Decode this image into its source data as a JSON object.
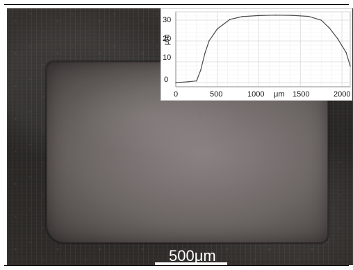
{
  "scale_bar": {
    "label": "500μm"
  },
  "inset_plot": {
    "y_unit": "μm",
    "x_unit": "μm",
    "y_ticks": [
      "30",
      "20",
      "10",
      "0"
    ],
    "x_ticks": [
      "0",
      "500",
      "1000",
      "1500",
      "2000"
    ],
    "grid": true
  },
  "chart_data": {
    "type": "line",
    "xlabel": "μm",
    "ylabel": "μm",
    "xlim": [
      0,
      2100
    ],
    "ylim": [
      -2,
      34
    ],
    "series": [
      {
        "values": [
          [
            0,
            0.0
          ],
          [
            150,
            0.4
          ],
          [
            250,
            0.8
          ],
          [
            300,
            6.0
          ],
          [
            350,
            14.0
          ],
          [
            400,
            20.0
          ],
          [
            500,
            25.8
          ],
          [
            650,
            30.3
          ],
          [
            800,
            31.7
          ],
          [
            1000,
            32.2
          ],
          [
            1200,
            32.4
          ],
          [
            1400,
            32.3
          ],
          [
            1600,
            31.8
          ],
          [
            1750,
            30.0
          ],
          [
            1850,
            26.2
          ],
          [
            1950,
            21.0
          ],
          [
            2050,
            14.5
          ],
          [
            2100,
            8.0
          ]
        ]
      }
    ]
  }
}
